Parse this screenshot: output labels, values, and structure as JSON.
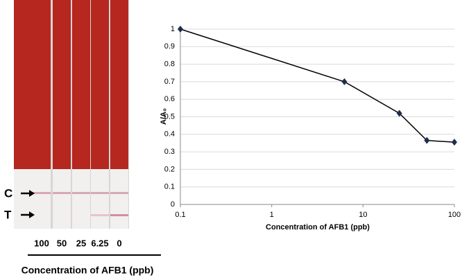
{
  "strips": {
    "line_labels": [
      "C",
      "T"
    ],
    "concentrations": [
      "100",
      "50",
      "25",
      "6.25",
      "0"
    ],
    "caption": "Concentration of AFB1 (ppb)"
  },
  "chart_data": {
    "type": "line",
    "x_label": "Concentration of AFB1 (ppb)",
    "y_label": "A/A₀",
    "x": [
      0.1,
      6.25,
      25,
      50,
      100
    ],
    "series": [
      {
        "color": "#1f2d4d",
        "values": [
          1,
          0.7,
          0.52,
          0.365,
          0.355
        ]
      }
    ],
    "x_log": true,
    "xlim": [
      0.1,
      100
    ],
    "xticks": [
      0.1,
      1,
      10,
      100
    ],
    "ylim": [
      0,
      1
    ],
    "yticks": [
      0,
      0.1,
      0.2,
      0.3,
      0.4,
      0.5,
      0.6,
      0.7,
      0.8,
      0.9,
      1
    ],
    "grid": true
  }
}
